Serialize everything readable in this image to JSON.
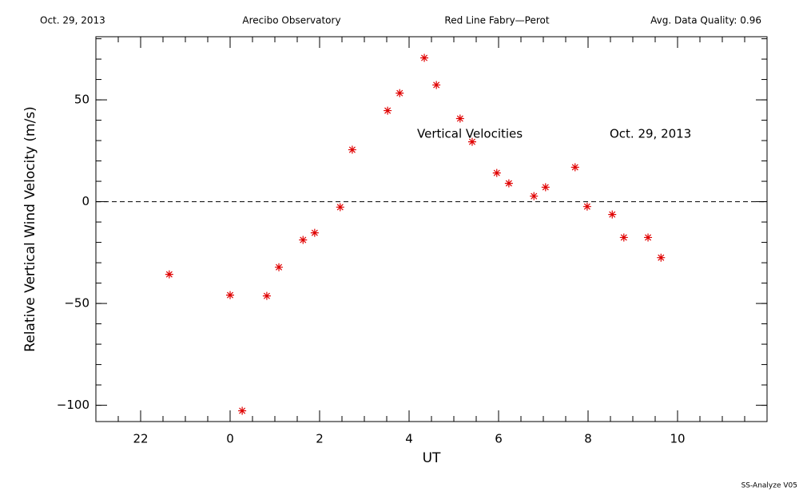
{
  "chart_data": {
    "type": "scatter",
    "header": [
      "Oct. 29, 2013",
      "Arecibo Observatory",
      "Red Line Fabry—Perot",
      "Avg. Data Quality: 0.96"
    ],
    "xlabel": "UT",
    "ylabel": "Relative Vertical Wind Velocity (m/s)",
    "annotations": [
      "Vertical Velocities",
      "Oct. 29, 2013"
    ],
    "footer": "SS-Analyze V05",
    "x": [
      -1.36,
      0,
      0.27,
      0.82,
      1.09,
      1.63,
      1.89,
      2.46,
      2.73,
      3.52,
      3.79,
      4.34,
      4.61,
      5.14,
      5.41,
      5.96,
      6.23,
      6.79,
      7.05,
      7.71,
      7.98,
      8.54,
      8.8,
      9.34,
      9.63
    ],
    "values": [
      -35.7,
      -45.9,
      -102.7,
      -46.3,
      -32.2,
      -18.8,
      -15.3,
      -2.7,
      25.5,
      44.7,
      53.3,
      70.6,
      57.3,
      40.8,
      29.4,
      14.1,
      9.0,
      2.7,
      7.1,
      16.9,
      -2.4,
      -6.3,
      -17.6,
      -17.6,
      -27.5
    ],
    "color": "#e00000",
    "xlim": [
      -3,
      12
    ],
    "xticks": [
      {
        "value": -2,
        "label": "22"
      },
      0,
      2,
      4,
      6,
      8,
      10
    ],
    "ylim": [
      -108,
      81
    ],
    "yticks": [
      {
        "value": -100,
        "label": "−100"
      },
      {
        "value": -50,
        "label": "−50"
      },
      0,
      50
    ],
    "hline": 0
  }
}
